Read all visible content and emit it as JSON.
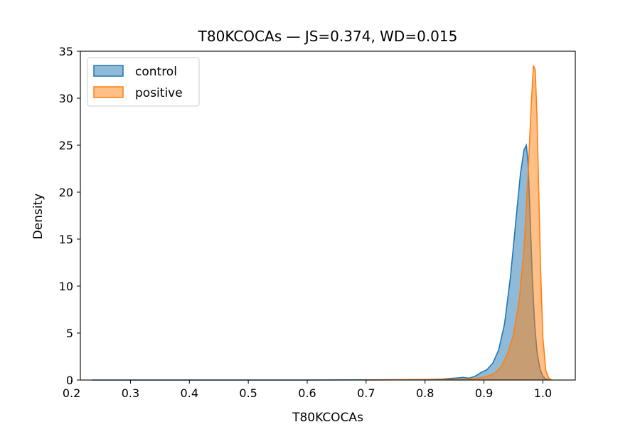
{
  "chart_data": {
    "type": "area",
    "title": "T80KCOCAs — JS=0.374, WD=0.015",
    "xlabel": "T80KCOCAs",
    "ylabel": "Density",
    "xlim": [
      0.215,
      1.055
    ],
    "ylim": [
      0,
      35
    ],
    "x_ticks": [
      0.2,
      0.3,
      0.4,
      0.5,
      0.6,
      0.7,
      0.8,
      0.9,
      1.0
    ],
    "x_tick_labels": [
      "0.2",
      "0.3",
      "0.4",
      "0.5",
      "0.6",
      "0.7",
      "0.8",
      "0.9",
      "1.0"
    ],
    "y_ticks": [
      0,
      5,
      10,
      15,
      20,
      25,
      30,
      35
    ],
    "y_tick_labels": [
      "0",
      "5",
      "10",
      "15",
      "20",
      "25",
      "30",
      "35"
    ],
    "grid": false,
    "legend_position": "top-left",
    "series": [
      {
        "name": "control",
        "color": "#1f77b4",
        "fill_opacity": 0.5,
        "x": [
          0.235,
          0.3,
          0.4,
          0.5,
          0.6,
          0.7,
          0.75,
          0.8,
          0.83,
          0.85,
          0.865,
          0.875,
          0.885,
          0.895,
          0.905,
          0.915,
          0.925,
          0.935,
          0.945,
          0.955,
          0.962,
          0.968,
          0.972,
          0.975,
          0.978,
          0.982,
          0.986,
          0.99,
          0.995,
          1.0,
          1.005,
          1.01
        ],
        "y": [
          0.0,
          0.0,
          0.0,
          0.0,
          0.0,
          0.02,
          0.03,
          0.05,
          0.1,
          0.2,
          0.28,
          0.2,
          0.4,
          0.8,
          1.1,
          1.8,
          3.2,
          6.0,
          11.0,
          17.5,
          22.0,
          24.5,
          25.0,
          23.0,
          18.0,
          11.0,
          6.0,
          3.0,
          1.2,
          0.4,
          0.1,
          0.0
        ]
      },
      {
        "name": "positive",
        "color": "#ff7f0e",
        "fill_opacity": 0.5,
        "x": [
          0.7,
          0.75,
          0.8,
          0.85,
          0.88,
          0.9,
          0.91,
          0.92,
          0.93,
          0.94,
          0.95,
          0.96,
          0.968,
          0.975,
          0.98,
          0.984,
          0.987,
          0.99,
          0.993,
          0.996,
          1.0,
          1.005,
          1.01,
          1.015
        ],
        "y": [
          0.0,
          0.02,
          0.03,
          0.05,
          0.1,
          0.3,
          0.5,
          0.8,
          1.5,
          2.8,
          4.8,
          8.5,
          14.0,
          22.0,
          29.0,
          33.5,
          33.0,
          28.0,
          20.0,
          12.0,
          4.5,
          1.0,
          0.2,
          0.0
        ]
      }
    ]
  }
}
